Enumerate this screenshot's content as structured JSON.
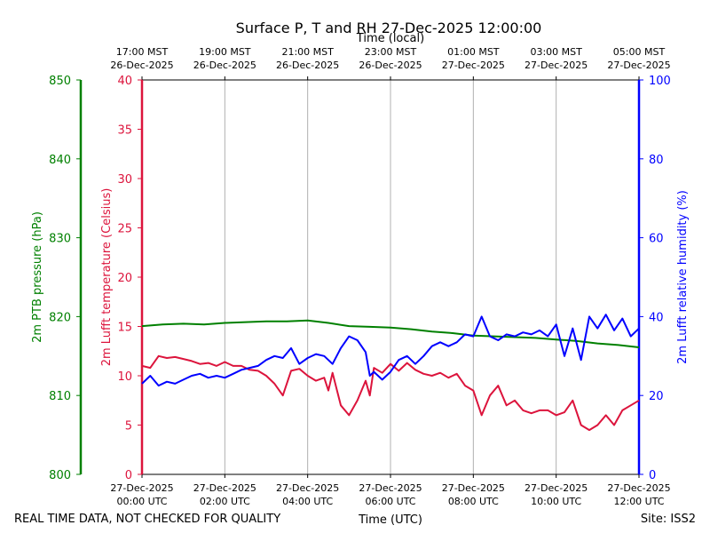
{
  "chart_data": {
    "type": "line",
    "title": "Surface P, T and RH 27-Dec-2025 12:00:00",
    "top_axis_label": "Time (local)",
    "xlabel": "Time (UTC)",
    "footer_left": "REAL TIME DATA, NOT CHECKED FOR QUALITY",
    "footer_right": "Site: ISS2",
    "xlim_hours_utc": [
      0,
      12
    ],
    "x_ticks_bottom": [
      {
        "hour": 0,
        "line1": "27-Dec-2025",
        "line2": "00:00 UTC"
      },
      {
        "hour": 2,
        "line1": "27-Dec-2025",
        "line2": "02:00 UTC"
      },
      {
        "hour": 4,
        "line1": "27-Dec-2025",
        "line2": "04:00 UTC"
      },
      {
        "hour": 6,
        "line1": "27-Dec-2025",
        "line2": "06:00 UTC"
      },
      {
        "hour": 8,
        "line1": "27-Dec-2025",
        "line2": "08:00 UTC"
      },
      {
        "hour": 10,
        "line1": "27-Dec-2025",
        "line2": "10:00 UTC"
      },
      {
        "hour": 12,
        "line1": "27-Dec-2025",
        "line2": "12:00 UTC"
      }
    ],
    "x_ticks_top": [
      {
        "hour": 0,
        "line1": "17:00 MST",
        "line2": "26-Dec-2025"
      },
      {
        "hour": 2,
        "line1": "19:00 MST",
        "line2": "26-Dec-2025"
      },
      {
        "hour": 4,
        "line1": "21:00 MST",
        "line2": "26-Dec-2025"
      },
      {
        "hour": 6,
        "line1": "23:00 MST",
        "line2": "26-Dec-2025"
      },
      {
        "hour": 8,
        "line1": "01:00 MST",
        "line2": "27-Dec-2025"
      },
      {
        "hour": 10,
        "line1": "03:00 MST",
        "line2": "27-Dec-2025"
      },
      {
        "hour": 12,
        "line1": "05:00 MST",
        "line2": "27-Dec-2025"
      }
    ],
    "grid": "vertical",
    "axes": {
      "pressure": {
        "label": "2m PTB pressure (hPa)",
        "color": "#008000",
        "ylim": [
          800,
          850
        ],
        "ticks": [
          800,
          810,
          820,
          830,
          840,
          850
        ]
      },
      "temperature": {
        "label": "2m Lufft temperature (Celsius)",
        "color": "#dc143c",
        "ylim": [
          0,
          40
        ],
        "ticks": [
          0,
          5,
          10,
          15,
          20,
          25,
          30,
          35,
          40
        ]
      },
      "humidity": {
        "label": "2m Lufft relative humidity (%)",
        "color": "#0000ff",
        "ylim": [
          0,
          100
        ],
        "ticks": [
          0,
          20,
          40,
          60,
          80,
          100
        ]
      }
    },
    "series": [
      {
        "axis": "pressure",
        "color": "#008000",
        "x": [
          0,
          0.5,
          1,
          1.5,
          2,
          2.5,
          3,
          3.5,
          4,
          4.5,
          5,
          5.5,
          6,
          6.5,
          7,
          7.5,
          8,
          8.5,
          9,
          9.5,
          10,
          10.5,
          11,
          11.5,
          12
        ],
        "values": [
          818.8,
          819.0,
          819.1,
          819.0,
          819.2,
          819.3,
          819.4,
          819.4,
          819.5,
          819.2,
          818.8,
          818.7,
          818.6,
          818.4,
          818.1,
          817.9,
          817.6,
          817.5,
          817.4,
          817.3,
          817.1,
          816.9,
          816.6,
          816.4,
          816.1
        ]
      },
      {
        "axis": "temperature",
        "color": "#dc143c",
        "x": [
          0,
          0.2,
          0.4,
          0.6,
          0.8,
          1.0,
          1.2,
          1.4,
          1.6,
          1.8,
          2.0,
          2.2,
          2.4,
          2.6,
          2.8,
          3.0,
          3.2,
          3.4,
          3.6,
          3.8,
          4.0,
          4.2,
          4.4,
          4.5,
          4.6,
          4.8,
          5.0,
          5.2,
          5.4,
          5.5,
          5.6,
          5.8,
          6.0,
          6.2,
          6.4,
          6.6,
          6.8,
          7.0,
          7.2,
          7.4,
          7.6,
          7.8,
          8.0,
          8.2,
          8.4,
          8.6,
          8.8,
          9.0,
          9.2,
          9.4,
          9.6,
          9.8,
          10.0,
          10.2,
          10.4,
          10.6,
          10.8,
          11.0,
          11.2,
          11.4,
          11.6,
          11.8,
          12.0
        ],
        "values": [
          11.0,
          10.8,
          12.0,
          11.8,
          11.9,
          11.7,
          11.5,
          11.2,
          11.3,
          11.0,
          11.4,
          11.0,
          11.0,
          10.6,
          10.5,
          10.0,
          9.2,
          8.0,
          10.5,
          10.7,
          10.0,
          9.5,
          9.8,
          8.5,
          10.3,
          7.0,
          6.0,
          7.5,
          9.5,
          8.0,
          10.8,
          10.3,
          11.2,
          10.5,
          11.3,
          10.6,
          10.2,
          10.0,
          10.3,
          9.8,
          10.2,
          9.0,
          8.5,
          6.0,
          8.0,
          9.0,
          7.0,
          7.5,
          6.5,
          6.2,
          6.5,
          6.5,
          6.0,
          6.3,
          7.5,
          5.0,
          4.5,
          5.0,
          6.0,
          5.0,
          6.5,
          7.0,
          7.5
        ]
      },
      {
        "axis": "humidity",
        "color": "#0000ff",
        "x": [
          0,
          0.2,
          0.4,
          0.6,
          0.8,
          1.0,
          1.2,
          1.4,
          1.6,
          1.8,
          2.0,
          2.2,
          2.4,
          2.6,
          2.8,
          3.0,
          3.2,
          3.4,
          3.6,
          3.8,
          4.0,
          4.2,
          4.4,
          4.6,
          4.8,
          5.0,
          5.2,
          5.4,
          5.5,
          5.6,
          5.8,
          6.0,
          6.2,
          6.4,
          6.6,
          6.8,
          7.0,
          7.2,
          7.4,
          7.6,
          7.8,
          8.0,
          8.2,
          8.4,
          8.6,
          8.8,
          9.0,
          9.2,
          9.4,
          9.6,
          9.8,
          10.0,
          10.2,
          10.4,
          10.6,
          10.8,
          11.0,
          11.2,
          11.4,
          11.6,
          11.8,
          12.0
        ],
        "values": [
          23.0,
          25.0,
          22.5,
          23.5,
          23.0,
          24.0,
          25.0,
          25.5,
          24.5,
          25.0,
          24.5,
          25.5,
          26.5,
          27.0,
          27.5,
          29.0,
          30.0,
          29.5,
          32.0,
          28.0,
          29.5,
          30.5,
          30.0,
          28.0,
          32.0,
          35.0,
          34.0,
          31.0,
          25.0,
          26.0,
          24.0,
          26.0,
          29.0,
          30.0,
          28.0,
          30.0,
          32.5,
          33.5,
          32.5,
          33.5,
          35.5,
          35.0,
          40.0,
          35.0,
          34.0,
          35.5,
          35.0,
          36.0,
          35.5,
          36.5,
          35.0,
          38.0,
          30.0,
          37.0,
          29.0,
          40.0,
          37.0,
          40.5,
          36.5,
          39.5,
          35.0,
          37.0
        ]
      }
    ]
  }
}
